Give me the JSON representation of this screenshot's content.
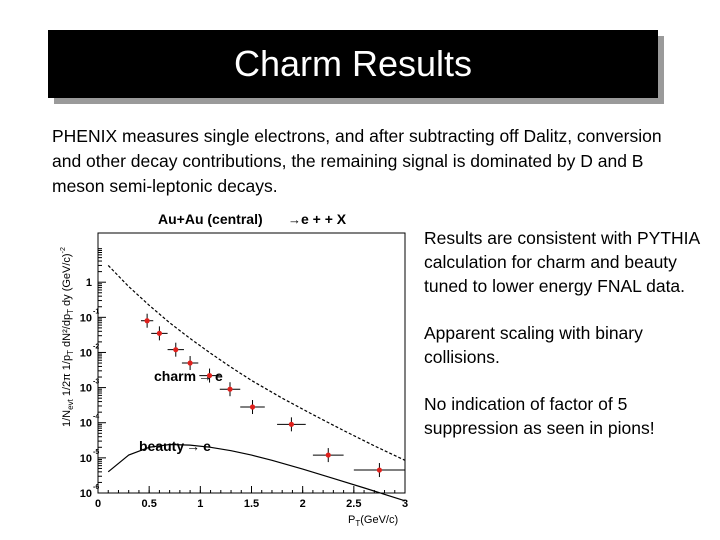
{
  "slide": {
    "title": "Charm Results",
    "intro": "PHENIX measures single electrons, and after subtracting off Dalitz, conversion and other decay contributions, the remaining signal is dominated by D and B meson semi-leptonic decays.",
    "bullets": [
      "Results are consistent with PYTHIA calculation for charm and beauty tuned to lower energy FNAL data.",
      "Apparent scaling with binary collisions.",
      "No indication of factor of 5 suppression as seen in pions!"
    ]
  },
  "chart_data": {
    "type": "scatter",
    "title_main": "Au+Au (central)",
    "title_arrow": "→",
    "title_rest": "e + + X",
    "xlabel": "P",
    "xlabel_sub": "T",
    "xlabel_unit": "(GeV/c)",
    "ylabel": "1/N",
    "ylabel_sub": "evt",
    "ylabel_rest": "1/2π 1/p",
    "ylabel_tail": "dN²/dp",
    "ylabel_end": "dy (GeV/c)",
    "ylabel_exp": "-2",
    "xlim": [
      0,
      3
    ],
    "ylog": true,
    "ylim_exp": [
      -6,
      1.4
    ],
    "x_ticks": [
      {
        "value": 0,
        "label": "0"
      },
      {
        "value": 0.5,
        "label": "0.5"
      },
      {
        "value": 1,
        "label": "1"
      },
      {
        "value": 1.5,
        "label": "1.5"
      },
      {
        "value": 2,
        "label": "2"
      },
      {
        "value": 2.5,
        "label": "2.5"
      },
      {
        "value": 3,
        "label": "3"
      }
    ],
    "y_ticks": [
      {
        "exp": 0,
        "label": "1",
        "sup": ""
      },
      {
        "exp": -1,
        "label": "10",
        "sup": "-1"
      },
      {
        "exp": -2,
        "label": "10",
        "sup": "-2"
      },
      {
        "exp": -3,
        "label": "10",
        "sup": "-3"
      },
      {
        "exp": -4,
        "label": "10",
        "sup": "-4"
      },
      {
        "exp": -5,
        "label": "10",
        "sup": "-5"
      },
      {
        "exp": -6,
        "label": "10",
        "sup": "-6"
      }
    ],
    "series": [
      {
        "kind": "data",
        "color": "#e0201c",
        "x": [
          0.48,
          0.6,
          0.76,
          0.9,
          1.09,
          1.29,
          1.51,
          1.89,
          2.25,
          2.75
        ],
        "y": [
          0.08,
          0.035,
          0.012,
          0.005,
          0.0022,
          0.0009,
          0.00028,
          9e-05,
          1.2e-05,
          4.5e-06
        ],
        "xerr": [
          0.06,
          0.08,
          0.08,
          0.08,
          0.1,
          0.1,
          0.12,
          0.14,
          0.15,
          0.25
        ]
      },
      {
        "kind": "line-dashed",
        "x": [
          0.1,
          0.3,
          0.5,
          0.7,
          0.9,
          1.1,
          1.3,
          1.5,
          1.8,
          2.1,
          2.4,
          2.7,
          3.0
        ],
        "y": [
          3.0,
          0.75,
          0.22,
          0.07,
          0.025,
          0.0095,
          0.0038,
          0.0016,
          0.0005,
          0.00017,
          6e-05,
          2.2e-05,
          8.5e-06
        ]
      },
      {
        "kind": "line-solid",
        "x": [
          0.1,
          0.3,
          0.5,
          0.7,
          0.9,
          1.1,
          1.3,
          1.5,
          1.7,
          2.0,
          2.3,
          2.6,
          3.0
        ],
        "y": [
          4e-06,
          1.2e-05,
          2e-05,
          2.4e-05,
          2.3e-05,
          2e-05,
          1.6e-05,
          1.2e-05,
          8.5e-06,
          4.8e-06,
          2.6e-06,
          1.4e-06,
          6e-07
        ]
      }
    ],
    "annotations": {
      "charm": "charm",
      "beauty": "beauty",
      "arrow": "→",
      "electron": "e"
    }
  }
}
